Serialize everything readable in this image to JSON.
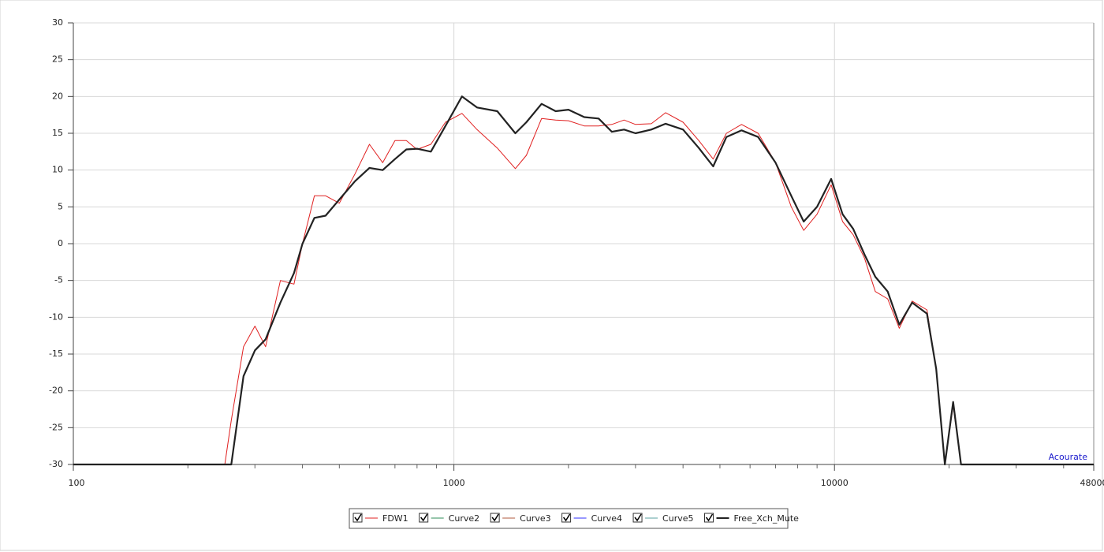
{
  "chart_data": {
    "type": "line",
    "xscale": "log",
    "grid": true,
    "annotation": "Acourate",
    "x": [
      100,
      250,
      260,
      280,
      300,
      320,
      350,
      380,
      400,
      430,
      460,
      500,
      550,
      600,
      650,
      700,
      750,
      800,
      870,
      950,
      1050,
      1150,
      1300,
      1450,
      1550,
      1700,
      1850,
      2000,
      2200,
      2400,
      2600,
      2800,
      3000,
      3300,
      3600,
      4000,
      4400,
      4800,
      5200,
      5700,
      6300,
      7000,
      7700,
      8300,
      9000,
      9800,
      10500,
      11200,
      12000,
      12800,
      13800,
      14800,
      16000,
      17500,
      18500,
      19500,
      20500,
      21500,
      48000
    ],
    "series": [
      {
        "name": "FDW1",
        "color": "#e02020",
        "checked": true,
        "values": [
          -30,
          -30,
          -24,
          -14,
          -11.2,
          -14,
          -5,
          -5.5,
          0,
          6.5,
          6.5,
          5.5,
          9.5,
          13.5,
          11,
          14,
          14,
          12.8,
          13.5,
          16.5,
          17.7,
          15.5,
          13,
          10.2,
          12,
          17,
          16.8,
          16.7,
          16,
          16,
          16.2,
          16.8,
          16.2,
          16.3,
          17.8,
          16.5,
          14,
          11.5,
          15,
          16.2,
          15,
          11,
          5,
          1.8,
          4,
          8,
          3,
          1.2,
          -2,
          -6.5,
          -7.5,
          -11.5,
          -7.8,
          -9,
          -17,
          -30,
          -22,
          -30,
          -30
        ]
      },
      {
        "name": "Curve2",
        "color": "#2e8b57",
        "checked": true
      },
      {
        "name": "Curve3",
        "color": "#b05a3c",
        "checked": true
      },
      {
        "name": "Curve4",
        "color": "#3030ff",
        "checked": true
      },
      {
        "name": "Curve5",
        "color": "#5aa0a0",
        "checked": true
      },
      {
        "name": "Free_Xch_Mute",
        "color": "#222222",
        "checked": true,
        "values": [
          -30,
          -30,
          -30,
          -18,
          -14.5,
          -13,
          -8,
          -4,
          0,
          3.5,
          3.8,
          6,
          8.5,
          10.3,
          10,
          11.5,
          12.8,
          12.9,
          12.5,
          16,
          20,
          18.5,
          18,
          15,
          16.5,
          19,
          18,
          18.2,
          17.2,
          17,
          15.2,
          15.5,
          15,
          15.5,
          16.3,
          15.5,
          13,
          10.5,
          14.5,
          15.4,
          14.5,
          11,
          6.5,
          3,
          5,
          8.8,
          4,
          2,
          -1.5,
          -4.5,
          -6.5,
          -11,
          -8,
          -9.5,
          -17,
          -30,
          -21.5,
          -30,
          -30
        ]
      }
    ],
    "xlim": [
      100,
      48000
    ],
    "xticks": [
      100,
      1000,
      10000,
      48000
    ],
    "xminorticks": [
      200,
      300,
      400,
      500,
      600,
      700,
      800,
      900,
      2000,
      3000,
      4000,
      5000,
      6000,
      7000,
      8000,
      9000,
      20000,
      30000,
      40000
    ],
    "ylim": [
      -30,
      30
    ],
    "yticks": [
      -30,
      -25,
      -20,
      -15,
      -10,
      -5,
      0,
      5,
      10,
      15,
      20,
      25,
      30
    ]
  }
}
